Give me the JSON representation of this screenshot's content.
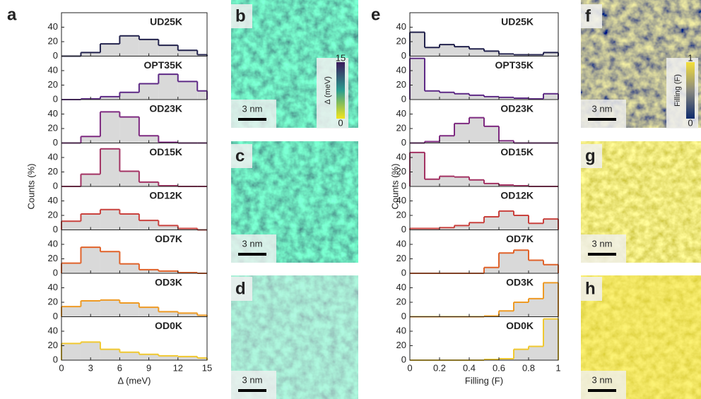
{
  "figure": {
    "panel_labels": [
      "a",
      "b",
      "c",
      "d",
      "e",
      "f",
      "g",
      "h"
    ],
    "ylabels": [
      "Counts (%)",
      "Counts (%)"
    ],
    "scale_bars": [
      "3 nm",
      "3 nm",
      "3 nm",
      "3 nm",
      "3 nm",
      "3 nm"
    ],
    "colorbars": [
      {
        "max": "15",
        "min": "0",
        "label": "Δ (meV)"
      },
      {
        "max": "1",
        "min": "0",
        "label": "Filling (F)"
      }
    ]
  },
  "chart_data": [
    {
      "type": "histogram",
      "title": "UD25K",
      "color": "#23234d",
      "bins": [
        0,
        2,
        4,
        6,
        8,
        10,
        12,
        14,
        15
      ],
      "values": [
        0,
        5,
        17,
        28,
        23,
        15,
        8,
        2
      ],
      "xlim": [
        0,
        15
      ],
      "ylim": [
        0,
        60
      ],
      "yticks": [
        0,
        20,
        40
      ]
    },
    {
      "type": "histogram",
      "title": "OPT35K",
      "color": "#5e2a86",
      "bins": [
        0,
        2,
        4,
        6,
        8,
        10,
        12,
        14,
        15
      ],
      "values": [
        0,
        1,
        4,
        10,
        22,
        35,
        25,
        12
      ],
      "xlim": [
        0,
        15
      ],
      "ylim": [
        0,
        60
      ],
      "yticks": [
        0,
        20,
        40
      ]
    },
    {
      "type": "histogram",
      "title": "OD23K",
      "color": "#7e2a80",
      "bins": [
        0,
        2,
        4,
        6,
        8,
        10,
        12,
        14,
        15
      ],
      "values": [
        0,
        9,
        43,
        36,
        10,
        1,
        0,
        0
      ],
      "xlim": [
        0,
        15
      ],
      "ylim": [
        0,
        60
      ],
      "yticks": [
        0,
        20,
        40
      ]
    },
    {
      "type": "histogram",
      "title": "OD15K",
      "color": "#a33263",
      "bins": [
        0,
        2,
        4,
        6,
        8,
        10,
        12,
        14,
        15
      ],
      "values": [
        0,
        17,
        52,
        21,
        6,
        1,
        0,
        0
      ],
      "xlim": [
        0,
        15
      ],
      "ylim": [
        0,
        60
      ],
      "yticks": [
        0,
        20,
        40
      ]
    },
    {
      "type": "histogram",
      "title": "OD12K",
      "color": "#c9423e",
      "bins": [
        0,
        2,
        4,
        6,
        8,
        10,
        12,
        14,
        15
      ],
      "values": [
        12,
        22,
        28,
        22,
        13,
        6,
        2,
        0
      ],
      "xlim": [
        0,
        15
      ],
      "ylim": [
        0,
        60
      ],
      "yticks": [
        0,
        20,
        40
      ]
    },
    {
      "type": "histogram",
      "title": "OD7K",
      "color": "#e0622a",
      "bins": [
        0,
        2,
        4,
        6,
        8,
        10,
        12,
        14,
        15
      ],
      "values": [
        14,
        36,
        30,
        13,
        5,
        3,
        1,
        0
      ],
      "xlim": [
        0,
        15
      ],
      "ylim": [
        0,
        60
      ],
      "yticks": [
        0,
        20,
        40
      ]
    },
    {
      "type": "histogram",
      "title": "OD3K",
      "color": "#ee9a24",
      "bins": [
        0,
        2,
        4,
        6,
        8,
        10,
        12,
        14,
        15
      ],
      "values": [
        14,
        22,
        23,
        19,
        13,
        7,
        5,
        2
      ],
      "xlim": [
        0,
        15
      ],
      "ylim": [
        0,
        60
      ],
      "yticks": [
        0,
        20,
        40
      ]
    },
    {
      "type": "histogram",
      "title": "OD0K",
      "color": "#f0c830",
      "bins": [
        0,
        2,
        4,
        6,
        8,
        10,
        12,
        14,
        15
      ],
      "values": [
        23,
        25,
        15,
        11,
        8,
        6,
        5,
        3
      ],
      "xlim": [
        0,
        15
      ],
      "ylim": [
        0,
        60
      ],
      "yticks": [
        0,
        20,
        40
      ],
      "xticks": [
        0,
        3,
        6,
        9,
        12,
        15
      ],
      "xlabel": "Δ (meV)"
    },
    {
      "type": "histogram",
      "title": "UD25K",
      "color": "#23234d",
      "bins": [
        0,
        0.1,
        0.2,
        0.3,
        0.4,
        0.5,
        0.6,
        0.7,
        0.8,
        0.9,
        1
      ],
      "values": [
        33,
        12,
        16,
        13,
        10,
        7,
        3,
        2,
        2,
        5
      ],
      "xlim": [
        0,
        1
      ],
      "ylim": [
        0,
        60
      ],
      "yticks": [
        0,
        20,
        40
      ]
    },
    {
      "type": "histogram",
      "title": "OPT35K",
      "color": "#5e2a86",
      "bins": [
        0,
        0.1,
        0.2,
        0.3,
        0.4,
        0.5,
        0.6,
        0.7,
        0.8,
        0.9,
        1
      ],
      "values": [
        57,
        12,
        10,
        8,
        6,
        4,
        3,
        2,
        1,
        8
      ],
      "xlim": [
        0,
        1
      ],
      "ylim": [
        0,
        60
      ],
      "yticks": [
        0,
        20,
        40
      ]
    },
    {
      "type": "histogram",
      "title": "OD23K",
      "color": "#7e2a80",
      "bins": [
        0,
        0.1,
        0.2,
        0.3,
        0.4,
        0.5,
        0.6,
        0.7,
        0.8,
        0.9,
        1
      ],
      "values": [
        0,
        2,
        10,
        27,
        35,
        23,
        3,
        0,
        0,
        0
      ],
      "xlim": [
        0,
        1
      ],
      "ylim": [
        0,
        60
      ],
      "yticks": [
        0,
        20,
        40
      ]
    },
    {
      "type": "histogram",
      "title": "OD15K",
      "color": "#a33263",
      "bins": [
        0,
        0.1,
        0.2,
        0.3,
        0.4,
        0.5,
        0.6,
        0.7,
        0.8,
        0.9,
        1
      ],
      "values": [
        47,
        10,
        14,
        13,
        9,
        4,
        2,
        1,
        0,
        0
      ],
      "xlim": [
        0,
        1
      ],
      "ylim": [
        0,
        60
      ],
      "yticks": [
        0,
        20,
        40
      ]
    },
    {
      "type": "histogram",
      "title": "OD12K",
      "color": "#c9423e",
      "bins": [
        0,
        0.1,
        0.2,
        0.3,
        0.4,
        0.5,
        0.6,
        0.7,
        0.8,
        0.9,
        1
      ],
      "values": [
        2,
        2,
        3,
        6,
        10,
        18,
        26,
        20,
        9,
        15
      ],
      "xlim": [
        0,
        1
      ],
      "ylim": [
        0,
        60
      ],
      "yticks": [
        0,
        20,
        40
      ]
    },
    {
      "type": "histogram",
      "title": "OD7K",
      "color": "#e0622a",
      "bins": [
        0,
        0.1,
        0.2,
        0.3,
        0.4,
        0.5,
        0.6,
        0.7,
        0.8,
        0.9,
        1
      ],
      "values": [
        0,
        0,
        0,
        0,
        0,
        8,
        28,
        32,
        18,
        12
      ],
      "xlim": [
        0,
        1
      ],
      "ylim": [
        0,
        60
      ],
      "yticks": [
        0,
        20,
        40
      ]
    },
    {
      "type": "histogram",
      "title": "OD3K",
      "color": "#ee9a24",
      "bins": [
        0,
        0.1,
        0.2,
        0.3,
        0.4,
        0.5,
        0.6,
        0.7,
        0.8,
        0.9,
        1
      ],
      "values": [
        0,
        0,
        0,
        0,
        0,
        1,
        8,
        20,
        25,
        47
      ],
      "xlim": [
        0,
        1
      ],
      "ylim": [
        0,
        60
      ],
      "yticks": [
        0,
        20,
        40
      ]
    },
    {
      "type": "histogram",
      "title": "OD0K",
      "color": "#f0c830",
      "bins": [
        0,
        0.1,
        0.2,
        0.3,
        0.4,
        0.5,
        0.6,
        0.7,
        0.8,
        0.9,
        1
      ],
      "values": [
        0,
        0,
        0,
        0,
        0,
        1,
        2,
        15,
        19,
        57
      ],
      "xlim": [
        0,
        1
      ],
      "ylim": [
        0,
        60
      ],
      "yticks": [
        0,
        20,
        40
      ],
      "xticks": [
        0,
        0.2,
        0.4,
        0.6,
        0.8,
        1
      ],
      "xlabel": "Filling (F)"
    }
  ]
}
